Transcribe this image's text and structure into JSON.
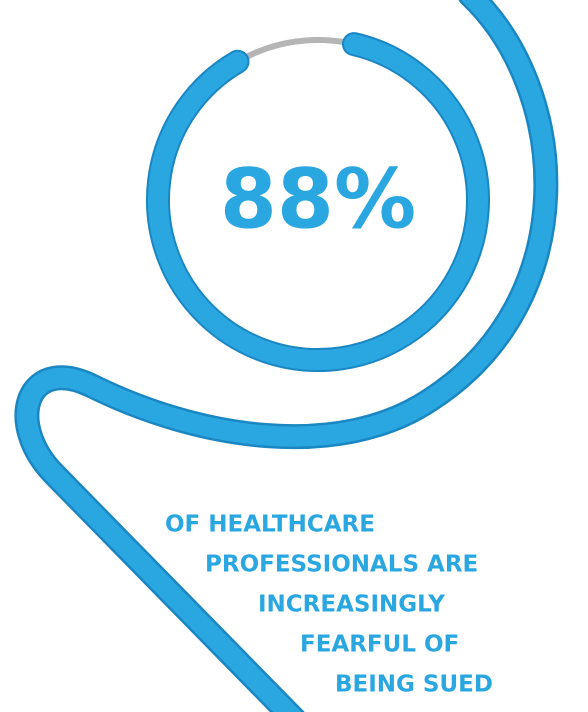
{
  "chart_data": {
    "type": "gauge",
    "values": [
      88
    ],
    "value_labels": [
      "88%"
    ],
    "color": "#2aa7e1",
    "track_color": "#b5b5b5",
    "caption": [
      "OF HEALTHCARE",
      "PROFESSIONALS ARE",
      "INCREASINGLY",
      "FEARFUL OF",
      "BEING SUED"
    ]
  }
}
